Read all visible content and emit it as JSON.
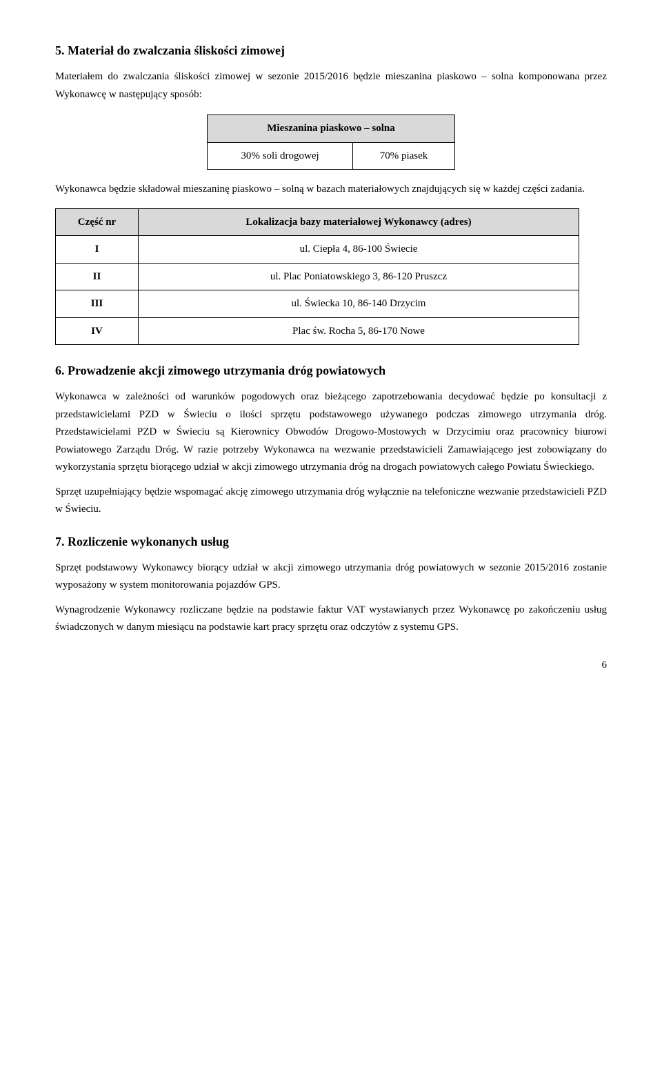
{
  "section5": {
    "heading": "5. Materiał do zwalczania śliskości zimowej",
    "para1": "Materiałem do zwalczania śliskości zimowej w sezonie 2015/2016 będzie mieszanina piaskowo – solna komponowana przez Wykonawcę w następujący sposób:",
    "table1": {
      "header": "Mieszanina piaskowo – solna",
      "cells": [
        "30% soli drogowej",
        "70% piasek"
      ]
    },
    "para2": "Wykonawca będzie składował mieszaninę piaskowo – solną  w bazach materiałowych znajdujących się w każdej części zadania.",
    "table2": {
      "col1": "Część nr",
      "col2": "Lokalizacja bazy materiałowej Wykonawcy (adres)",
      "rows": [
        [
          "I",
          "ul. Ciepła 4, 86-100 Świecie"
        ],
        [
          "II",
          "ul. Plac Poniatowskiego 3, 86-120 Pruszcz"
        ],
        [
          "III",
          "ul. Świecka 10, 86-140 Drzycim"
        ],
        [
          "IV",
          "Plac św. Rocha 5, 86-170 Nowe"
        ]
      ]
    }
  },
  "section6": {
    "heading": "6. Prowadzenie akcji zimowego utrzymania dróg powiatowych",
    "para1": "Wykonawca w zależności od warunków pogodowych oraz bieżącego zapotrzebowania decydować będzie po konsultacji z przedstawicielami PZD w Świeciu o ilości sprzętu podstawowego używanego podczas zimowego utrzymania dróg. Przedstawicielami PZD w Świeciu są Kierownicy Obwodów Drogowo-Mostowych w  Drzycimiu oraz pracownicy biurowi Powiatowego Zarządu Dróg. W razie potrzeby Wykonawca na wezwanie przedstawicieli Zamawiającego jest zobowiązany do wykorzystania sprzętu biorącego udział w akcji zimowego utrzymania dróg na drogach powiatowych całego Powiatu Świeckiego.",
    "para2": "Sprzęt uzupełniający będzie wspomagać akcję zimowego utrzymania dróg wyłącznie na telefoniczne wezwanie przedstawicieli PZD w Świeciu."
  },
  "section7": {
    "heading": "7. Rozliczenie wykonanych usług",
    "para1": "Sprzęt podstawowy Wykonawcy biorący udział w akcji zimowego utrzymania dróg powiatowych w sezonie 2015/2016 zostanie wyposażony w system monitorowania pojazdów GPS.",
    "para2": "Wynagrodzenie Wykonawcy rozliczane będzie na podstawie faktur VAT wystawianych przez Wykonawcę po zakończeniu usług świadczonych w danym miesiącu na podstawie kart pracy sprzętu oraz odczytów  z systemu GPS."
  },
  "pageNumber": "6"
}
